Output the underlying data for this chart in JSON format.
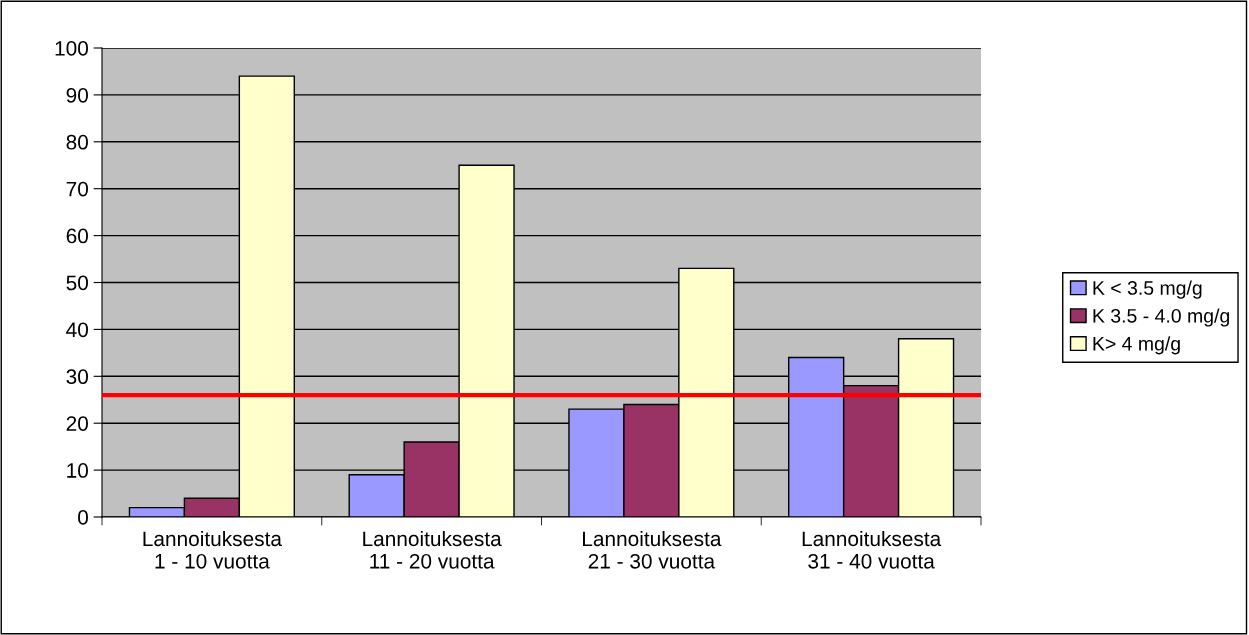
{
  "chart_data": {
    "type": "bar",
    "categories": [
      "Lannoituksesta\n1 - 10 vuotta",
      "Lannoituksesta\n11 - 20 vuotta",
      "Lannoituksesta\n21 - 30 vuotta",
      "Lannoituksesta\n31 - 40 vuotta"
    ],
    "series": [
      {
        "name": "K < 3.5 mg/g",
        "color": "#9999ff",
        "values": [
          2,
          9,
          23,
          34
        ]
      },
      {
        "name": "K 3.5 - 4.0 mg/g",
        "color": "#993366",
        "values": [
          4,
          16,
          24,
          28
        ]
      },
      {
        "name": "K> 4 mg/g",
        "color": "#ffffcc",
        "values": [
          94,
          75,
          53,
          38
        ]
      }
    ],
    "ylim": [
      0,
      100
    ],
    "yticks": [
      0,
      10,
      20,
      30,
      40,
      50,
      60,
      70,
      80,
      90,
      100
    ],
    "ref_lines": [
      {
        "axis": "y",
        "value": 26,
        "color": "#ff0000"
      }
    ],
    "grid": "y",
    "legend": "right"
  }
}
